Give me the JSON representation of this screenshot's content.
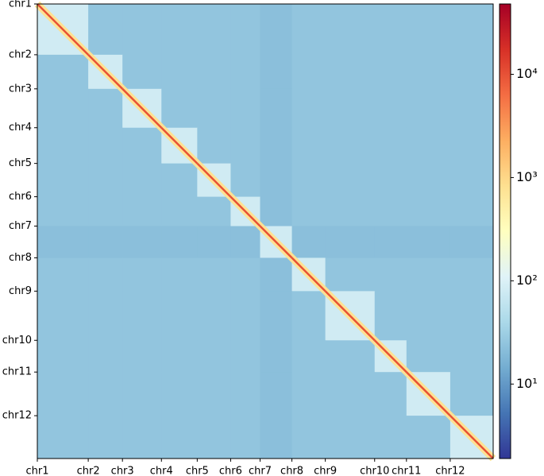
{
  "chart_data": {
    "type": "heatmap",
    "categories": [
      "chr1",
      "chr2",
      "chr3",
      "chr4",
      "chr5",
      "chr6",
      "chr7",
      "chr8",
      "chr9",
      "chr10",
      "chr11",
      "chr12"
    ],
    "xlim": [
      0,
      573
    ],
    "ylim": [
      0,
      573
    ],
    "xticks": [
      {
        "value": 0,
        "label": "chr1"
      },
      {
        "value": 64,
        "label": "chr2"
      },
      {
        "value": 107,
        "label": "chr3"
      },
      {
        "value": 156,
        "label": "chr4"
      },
      {
        "value": 201,
        "label": "chr5"
      },
      {
        "value": 243,
        "label": "chr6"
      },
      {
        "value": 280,
        "label": "chr7"
      },
      {
        "value": 320,
        "label": "chr8"
      },
      {
        "value": 362,
        "label": "chr9"
      },
      {
        "value": 424,
        "label": "chr10"
      },
      {
        "value": 464,
        "label": "chr11"
      },
      {
        "value": 519,
        "label": "chr12"
      }
    ],
    "yticks": [
      {
        "value": 0,
        "label": "chr1"
      },
      {
        "value": 64,
        "label": "chr2"
      },
      {
        "value": 107,
        "label": "chr3"
      },
      {
        "value": 156,
        "label": "chr4"
      },
      {
        "value": 201,
        "label": "chr5"
      },
      {
        "value": 243,
        "label": "chr6"
      },
      {
        "value": 280,
        "label": "chr7"
      },
      {
        "value": 320,
        "label": "chr8"
      },
      {
        "value": 362,
        "label": "chr9"
      },
      {
        "value": 424,
        "label": "chr10"
      },
      {
        "value": 464,
        "label": "chr11"
      },
      {
        "value": 519,
        "label": "chr12"
      }
    ],
    "matrix": [
      [
        80,
        25,
        25,
        25,
        25,
        25,
        22,
        25,
        25,
        25,
        25,
        25
      ],
      [
        25,
        80,
        25,
        25,
        25,
        25,
        22,
        25,
        25,
        25,
        25,
        25
      ],
      [
        25,
        25,
        80,
        25,
        25,
        25,
        22,
        25,
        25,
        25,
        25,
        25
      ],
      [
        25,
        25,
        25,
        80,
        25,
        25,
        22,
        25,
        25,
        25,
        25,
        25
      ],
      [
        25,
        25,
        25,
        25,
        80,
        25,
        22,
        25,
        25,
        25,
        25,
        25
      ],
      [
        25,
        25,
        25,
        25,
        25,
        80,
        22,
        25,
        25,
        25,
        25,
        25
      ],
      [
        22,
        22,
        22,
        22,
        22,
        22,
        80,
        22,
        22,
        22,
        22,
        22
      ],
      [
        25,
        25,
        25,
        25,
        25,
        25,
        22,
        80,
        25,
        25,
        25,
        25
      ],
      [
        25,
        25,
        25,
        25,
        25,
        25,
        22,
        25,
        80,
        25,
        25,
        25
      ],
      [
        25,
        25,
        25,
        25,
        25,
        25,
        22,
        25,
        25,
        80,
        25,
        25
      ],
      [
        25,
        25,
        25,
        25,
        25,
        25,
        22,
        25,
        25,
        25,
        80,
        25
      ],
      [
        25,
        25,
        25,
        25,
        25,
        25,
        22,
        25,
        25,
        25,
        25,
        80
      ]
    ],
    "near_diagonal": 800,
    "diagonal": 10000,
    "color_log_scale": true,
    "clim": [
      1.9,
      48000
    ],
    "cticks": [
      {
        "value": 10,
        "label": "10¹"
      },
      {
        "value": 100,
        "label": "10²"
      },
      {
        "value": 1000,
        "label": "10³"
      },
      {
        "value": 10000,
        "label": "10⁴"
      }
    ],
    "colormap": [
      "#313695",
      "#4575b4",
      "#74add1",
      "#abd9e9",
      "#e0f3f8",
      "#ffffbf",
      "#fee090",
      "#fdae61",
      "#f46d43",
      "#d73027",
      "#a50026"
    ]
  }
}
